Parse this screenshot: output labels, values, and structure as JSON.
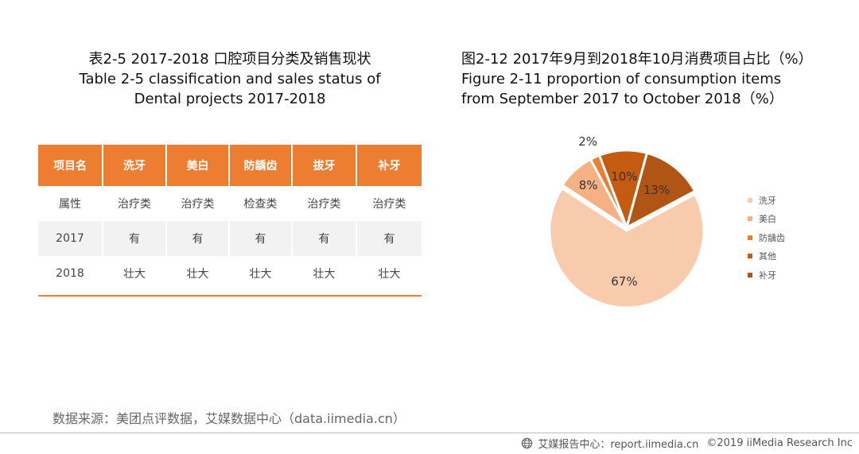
{
  "table": {
    "title_cn": "表2-5  2017-2018 口腔项目分类及销售现状",
    "title_en_line1": "Table 2-5 classification  and sales status of",
    "title_en_line2": "Dental projects 2017-2018",
    "headers": [
      "项目名",
      "洗牙",
      "美白",
      "防龋齿",
      "拔牙",
      "补牙"
    ],
    "rows": [
      [
        "属性",
        "治疗类",
        "治疗类",
        "检查类",
        "治疗类",
        "治疗类"
      ],
      [
        "2017",
        "有",
        "有",
        "有",
        "有",
        "有"
      ],
      [
        "2018",
        "壮大",
        "壮大",
        "壮大",
        "壮大",
        "壮大"
      ]
    ],
    "accent_color": "#ed7d31",
    "shade_color": "#f2f2f2"
  },
  "chart_data": {
    "type": "pie",
    "title": "图2-12 2017年9月到2018年10月消费项目占比（%）",
    "subtitle_line1": "Figure 2-11 proportion of consumption  items",
    "subtitle_line2": "from September 2017 to October 2018（%）",
    "slices": [
      {
        "name": "洗牙",
        "value": 67,
        "label": "67%",
        "color": "#f8cbad"
      },
      {
        "name": "美白",
        "value": 8,
        "label": "8%",
        "color": "#f4b183"
      },
      {
        "name": "防龋齿",
        "value": 2,
        "label": "2%",
        "color": "#ed7d31"
      },
      {
        "name": "其他",
        "value": 10,
        "label": "10%",
        "color": "#c55a11"
      },
      {
        "name": "补牙",
        "value": 13,
        "label": "13%",
        "color": "#b15517"
      }
    ],
    "legend_position": "right"
  },
  "footer": {
    "source": "数据来源：美团点评数据，艾媒数据中心（data.iimedia.cn）",
    "report": "艾媒报告中心：report.iimedia.cn",
    "copyright": "©2019  iiMedia Research  Inc"
  }
}
